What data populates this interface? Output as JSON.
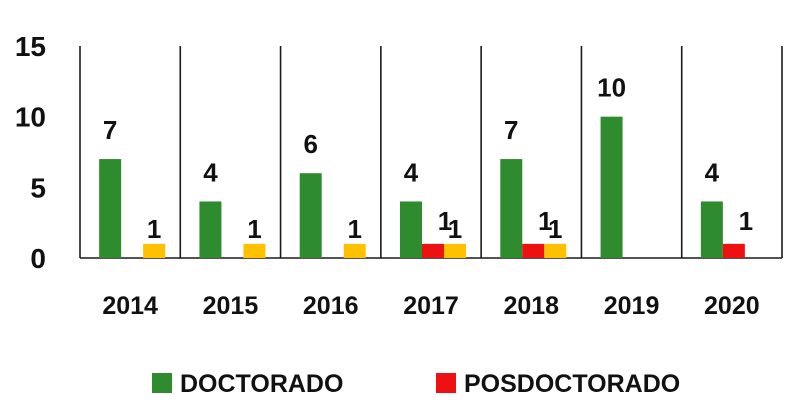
{
  "chart_data": {
    "type": "bar",
    "categories": [
      "2014",
      "2015",
      "2016",
      "2017",
      "2018",
      "2019",
      "2020"
    ],
    "series": [
      {
        "name": "DOCTORADO",
        "color": "#2e8b2e",
        "values": [
          7,
          4,
          6,
          4,
          7,
          10,
          4
        ]
      },
      {
        "name": "POSDOCTORADO",
        "color": "#ee1111",
        "values": [
          null,
          null,
          null,
          1,
          1,
          null,
          1
        ]
      },
      {
        "name": "",
        "color": "#ffc000",
        "values": [
          1,
          1,
          1,
          1,
          1,
          null,
          null
        ]
      }
    ],
    "ylim": [
      0,
      15
    ],
    "yticks": [
      0,
      5,
      10,
      15
    ],
    "grid": false,
    "category_separators": true,
    "legend_position": "bottom",
    "legend_entries": [
      "DOCTORADO",
      "POSDOCTORADO"
    ]
  }
}
